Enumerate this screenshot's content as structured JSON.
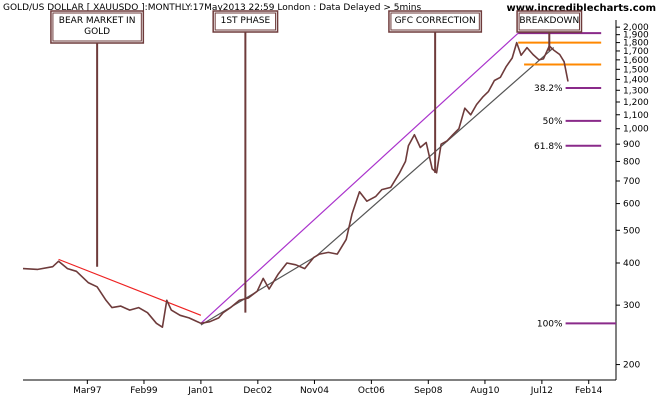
{
  "header": {
    "title": "GOLD/US DOLLAR [ XAUUSDO ]:MONTHLY:17May2013 22:59 London : Data Delayed > 5mins",
    "site": "www.incrediblecharts.com"
  },
  "chart_data": {
    "type": "line",
    "title": "GOLD/US DOLLAR [ XAUUSDO ]:MONTHLY:17May2013 22:59 London : Data Delayed > 5mins",
    "x_ticks": [
      "Mar97",
      "Feb99",
      "Jan01",
      "Dec02",
      "Nov04",
      "Oct06",
      "Sep08",
      "Aug10",
      "Jul12",
      "Feb14"
    ],
    "x_tick_values": [
      1997.17,
      1999.08,
      2001.0,
      2002.92,
      2004.83,
      2006.75,
      2008.67,
      2010.58,
      2012.5,
      2014.08
    ],
    "xlim": [
      1995.0,
      2015.0
    ],
    "y_scale": "log",
    "ylim": [
      180,
      2100
    ],
    "y_ticks": [
      "2,000",
      "1,900",
      "1,800",
      "1,700",
      "1,600",
      "1,500",
      "1,400",
      "1,300",
      "1,200",
      "1,100",
      "1,000",
      "900",
      "800",
      "700",
      "600",
      "500",
      "400",
      "300",
      "200"
    ],
    "y_tick_values": [
      2000,
      1900,
      1800,
      1700,
      1600,
      1500,
      1400,
      1300,
      1200,
      1100,
      1000,
      900,
      800,
      700,
      600,
      500,
      400,
      300,
      200
    ],
    "series": [
      {
        "color": "#6e3b3b",
        "points": [
          [
            1995.0,
            385
          ],
          [
            1995.5,
            383
          ],
          [
            1996.0,
            390
          ],
          [
            1996.2,
            405
          ],
          [
            1996.5,
            385
          ],
          [
            1996.8,
            378
          ],
          [
            1997.2,
            350
          ],
          [
            1997.5,
            340
          ],
          [
            1997.8,
            310
          ],
          [
            1998.0,
            295
          ],
          [
            1998.3,
            298
          ],
          [
            1998.6,
            290
          ],
          [
            1998.9,
            295
          ],
          [
            1999.2,
            285
          ],
          [
            1999.5,
            265
          ],
          [
            1999.7,
            258
          ],
          [
            1999.85,
            310
          ],
          [
            2000.0,
            290
          ],
          [
            2000.3,
            280
          ],
          [
            2000.6,
            275
          ],
          [
            2000.8,
            270
          ],
          [
            2001.0,
            265
          ],
          [
            2001.3,
            268
          ],
          [
            2001.6,
            275
          ],
          [
            2001.75,
            285
          ],
          [
            2002.0,
            295
          ],
          [
            2002.3,
            310
          ],
          [
            2002.6,
            315
          ],
          [
            2002.9,
            330
          ],
          [
            2003.1,
            360
          ],
          [
            2003.3,
            335
          ],
          [
            2003.6,
            370
          ],
          [
            2003.9,
            400
          ],
          [
            2004.2,
            395
          ],
          [
            2004.5,
            385
          ],
          [
            2004.8,
            415
          ],
          [
            2005.0,
            425
          ],
          [
            2005.3,
            430
          ],
          [
            2005.6,
            425
          ],
          [
            2005.9,
            470
          ],
          [
            2006.1,
            560
          ],
          [
            2006.35,
            650
          ],
          [
            2006.6,
            610
          ],
          [
            2006.9,
            630
          ],
          [
            2007.1,
            660
          ],
          [
            2007.4,
            670
          ],
          [
            2007.7,
            740
          ],
          [
            2007.9,
            800
          ],
          [
            2008.0,
            890
          ],
          [
            2008.2,
            960
          ],
          [
            2008.4,
            880
          ],
          [
            2008.6,
            910
          ],
          [
            2008.8,
            760
          ],
          [
            2008.95,
            740
          ],
          [
            2009.1,
            900
          ],
          [
            2009.3,
            920
          ],
          [
            2009.5,
            960
          ],
          [
            2009.7,
            1000
          ],
          [
            2009.9,
            1150
          ],
          [
            2010.1,
            1100
          ],
          [
            2010.3,
            1180
          ],
          [
            2010.5,
            1240
          ],
          [
            2010.7,
            1290
          ],
          [
            2010.9,
            1390
          ],
          [
            2011.1,
            1420
          ],
          [
            2011.3,
            1530
          ],
          [
            2011.5,
            1620
          ],
          [
            2011.65,
            1800
          ],
          [
            2011.8,
            1650
          ],
          [
            2012.0,
            1740
          ],
          [
            2012.2,
            1660
          ],
          [
            2012.4,
            1600
          ],
          [
            2012.55,
            1610
          ],
          [
            2012.75,
            1760
          ],
          [
            2012.9,
            1710
          ],
          [
            2013.1,
            1660
          ],
          [
            2013.25,
            1580
          ],
          [
            2013.38,
            1380
          ]
        ]
      }
    ],
    "trendlines": [
      {
        "color": "#ee2222",
        "from": [
          1996.2,
          410
        ],
        "to": [
          2001.0,
          280
        ]
      },
      {
        "color": "#aa33cc",
        "from": [
          2001.0,
          265
        ],
        "to": [
          2011.7,
          1920
        ]
      },
      {
        "color": "#555555",
        "from": [
          2001.0,
          262
        ],
        "to": [
          2004.9,
          420
        ]
      },
      {
        "color": "#555555",
        "from": [
          2004.9,
          420
        ],
        "to": [
          2012.9,
          1740
        ]
      }
    ],
    "levels": [
      {
        "value": 1920,
        "color": "#8a2a8a",
        "from_x": 2011.7,
        "to_x": 2014.5,
        "label": ""
      },
      {
        "value": 1800,
        "color": "#ff8800",
        "from_x": 2011.7,
        "to_x": 2014.5,
        "label": ""
      },
      {
        "value": 1550,
        "color": "#ff8800",
        "from_x": 2011.9,
        "to_x": 2014.5,
        "label": ""
      },
      {
        "value": 1320,
        "color": "#8a2a8a",
        "from_x": 2013.3,
        "to_x": 2014.5,
        "label": "38.2%"
      },
      {
        "value": 1055,
        "color": "#8a2a8a",
        "from_x": 2013.3,
        "to_x": 2014.5,
        "label": "50%"
      },
      {
        "value": 890,
        "color": "#8a2a8a",
        "from_x": 2013.3,
        "to_x": 2014.5,
        "label": "61.8%"
      },
      {
        "value": 265,
        "color": "#8a2a8a",
        "from_x": 2013.3,
        "to_x": 2015.0,
        "label": "100%"
      }
    ],
    "annotations": [
      {
        "lines": [
          "BEAR MARKET IN",
          "GOLD"
        ],
        "pointer_x": 1997.5,
        "pointer_to": 390
      },
      {
        "lines": [
          "1ST PHASE"
        ],
        "pointer_x": 2002.5,
        "pointer_to": 285
      },
      {
        "lines": [
          "GFC CORRECTION"
        ],
        "pointer_x": 2008.9,
        "pointer_to": 740
      },
      {
        "lines": [
          "BREAKDOWN"
        ],
        "pointer_x": 2012.75,
        "pointer_to": 1700
      }
    ]
  }
}
